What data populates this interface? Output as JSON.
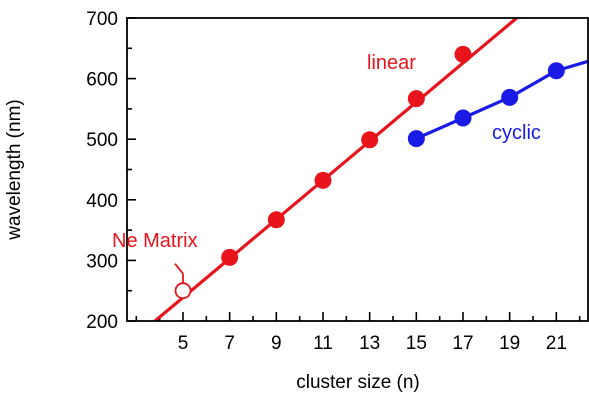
{
  "chart_data": {
    "type": "line",
    "xlabel": "cluster size (n)",
    "ylabel": "wavelength (nm)",
    "xlim": [
      2.6,
      22.4
    ],
    "ylim": [
      200,
      700
    ],
    "xticks": [
      5,
      7,
      9,
      11,
      13,
      15,
      17,
      19,
      21
    ],
    "yticks": [
      200,
      300,
      400,
      500,
      600,
      700
    ],
    "grid": false,
    "series": [
      {
        "name": "linear",
        "color": "#e8141c",
        "marker": "filled-circle",
        "points": [
          {
            "x": 7,
            "y": 305
          },
          {
            "x": 9,
            "y": 367
          },
          {
            "x": 11,
            "y": 432
          },
          {
            "x": 13,
            "y": 499
          },
          {
            "x": 15,
            "y": 567
          },
          {
            "x": 17,
            "y": 640
          }
        ],
        "fit_line": {
          "x": [
            3.8,
            22.4
          ],
          "y": [
            200,
            800
          ]
        }
      },
      {
        "name": "cyclic",
        "color": "#1a1ae6",
        "marker": "filled-circle",
        "points": [
          {
            "x": 15,
            "y": 501
          },
          {
            "x": 17,
            "y": 535
          },
          {
            "x": 19,
            "y": 569
          },
          {
            "x": 21,
            "y": 613
          }
        ],
        "line_extends_to": {
          "x": 22.4,
          "y": 629
        }
      }
    ],
    "annotations": [
      {
        "text": "Ne Matrix",
        "color": "#e8141c",
        "point": {
          "x": 5,
          "y": 250
        },
        "marker": "open-circle"
      }
    ]
  }
}
